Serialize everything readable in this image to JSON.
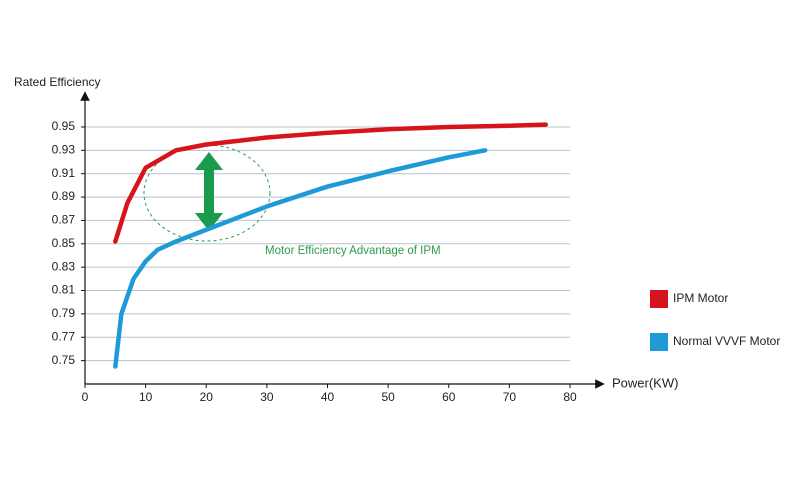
{
  "chart_data": {
    "type": "line",
    "y_label": "Rated Efficiency",
    "x_label": "Power(KW)",
    "annotation": "Motor Efficiency Advantage of IPM",
    "xlim": [
      0,
      80
    ],
    "xticks": [
      0,
      10,
      20,
      30,
      40,
      50,
      60,
      70,
      80
    ],
    "ylim": [
      0.73,
      0.97
    ],
    "yticks": [
      0.75,
      0.77,
      0.79,
      0.81,
      0.83,
      0.85,
      0.87,
      0.89,
      0.91,
      0.93,
      0.95
    ],
    "grid": true,
    "legend": "right",
    "series": [
      {
        "name": "IPM Motor",
        "color": "#d7141c",
        "x": [
          5,
          7,
          10,
          15,
          20,
          25,
          30,
          40,
          50,
          60,
          70,
          76
        ],
        "values": [
          0.852,
          0.885,
          0.915,
          0.93,
          0.935,
          0.938,
          0.941,
          0.945,
          0.948,
          0.95,
          0.951,
          0.952
        ]
      },
      {
        "name": "Normal VVVF Motor",
        "color": "#1e9ad6",
        "x": [
          5,
          6,
          8,
          10,
          12,
          15,
          20,
          30,
          40,
          50,
          60,
          66
        ],
        "values": [
          0.745,
          0.79,
          0.82,
          0.835,
          0.845,
          0.852,
          0.862,
          0.882,
          0.899,
          0.912,
          0.924,
          0.93
        ]
      }
    ]
  }
}
